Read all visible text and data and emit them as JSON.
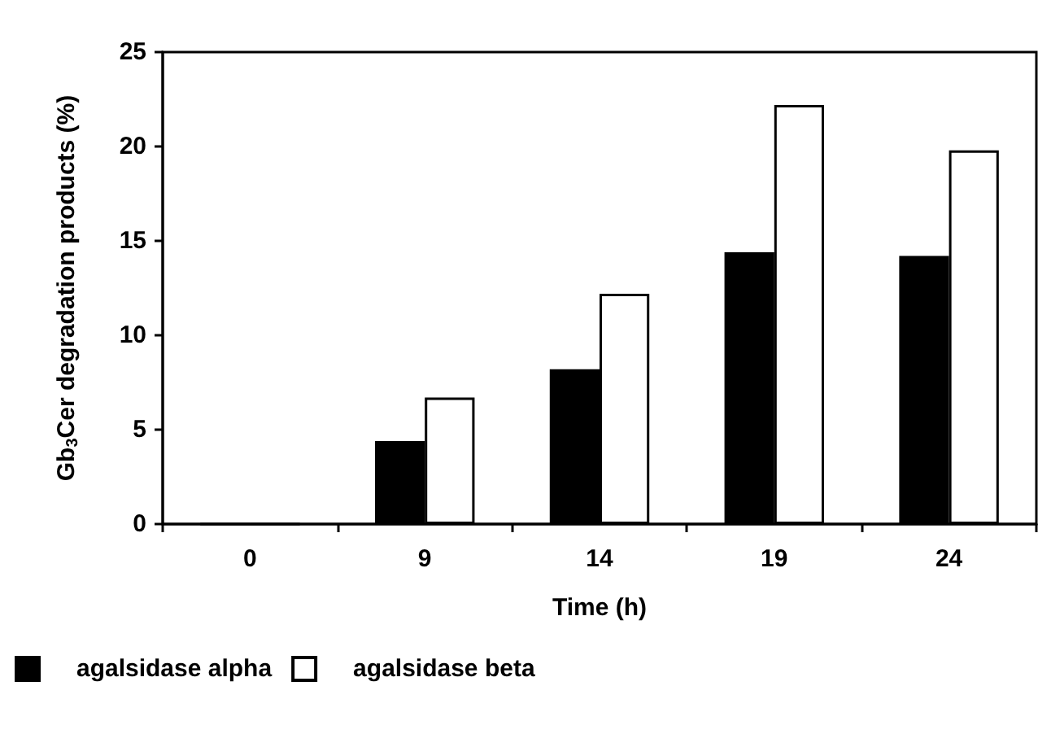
{
  "chart_data": {
    "type": "bar",
    "xlabel": "Time (h)",
    "ylabel": "Gb$_{3}$Cer degradation products (%)",
    "categories": [
      "0",
      "9",
      "14",
      "19",
      "24"
    ],
    "series": [
      {
        "name": "agalsidase alpha",
        "color": "#000000",
        "values": [
          0,
          4.4,
          8.2,
          14.4,
          14.2
        ]
      },
      {
        "name": "agalsidase beta",
        "color": "#ffffff",
        "values": [
          0,
          6.7,
          12.2,
          22.2,
          19.8
        ]
      }
    ],
    "ylim": [
      0,
      25
    ],
    "yticks": [
      0,
      5,
      10,
      15,
      20,
      25
    ],
    "grid": false,
    "legend": "bottom left"
  }
}
